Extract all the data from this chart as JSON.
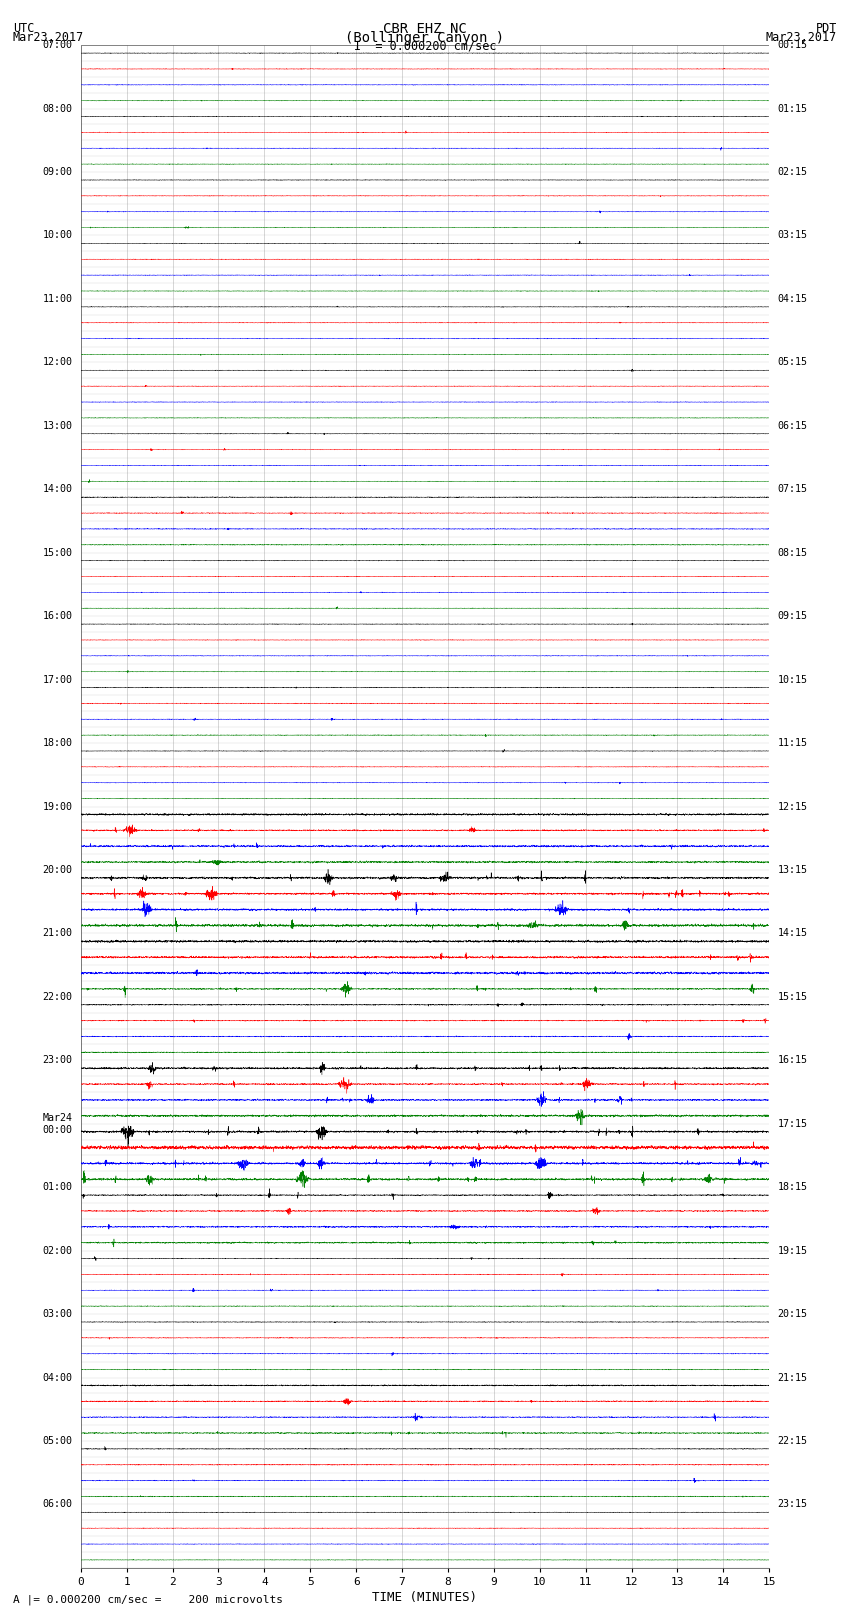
{
  "title_line1": "CBR EHZ NC",
  "title_line2": "(Bollinger Canyon )",
  "title_line3": "I  = 0.000200 cm/sec",
  "left_header_line1": "UTC",
  "left_header_line2": "Mar23,2017",
  "right_header_line1": "PDT",
  "right_header_line2": "Mar23,2017",
  "xlabel": "TIME (MINUTES)",
  "footer": "A |= 0.000200 cm/sec =    200 microvolts",
  "xlim": [
    0,
    15
  ],
  "xticks": [
    0,
    1,
    2,
    3,
    4,
    5,
    6,
    7,
    8,
    9,
    10,
    11,
    12,
    13,
    14,
    15
  ],
  "background_color": "#ffffff",
  "grid_color": "#888888",
  "trace_colors": [
    "black",
    "red",
    "blue",
    "green"
  ],
  "num_hour_rows": 24,
  "traces_per_hour": 4,
  "left_times_utc": [
    "07:00",
    "08:00",
    "09:00",
    "10:00",
    "11:00",
    "12:00",
    "13:00",
    "14:00",
    "15:00",
    "16:00",
    "17:00",
    "18:00",
    "19:00",
    "20:00",
    "21:00",
    "22:00",
    "23:00",
    "Mar24\n00:00",
    "01:00",
    "02:00",
    "03:00",
    "04:00",
    "05:00",
    "06:00"
  ],
  "right_times_pdt": [
    "00:15",
    "01:15",
    "02:15",
    "03:15",
    "04:15",
    "05:15",
    "06:15",
    "07:15",
    "08:15",
    "09:15",
    "10:15",
    "11:15",
    "12:15",
    "13:15",
    "14:15",
    "15:15",
    "16:15",
    "17:15",
    "18:15",
    "19:15",
    "20:15",
    "21:15",
    "22:15",
    "23:15"
  ],
  "activity_levels": [
    0.4,
    0.4,
    0.4,
    0.4,
    0.4,
    0.4,
    0.4,
    0.6,
    0.4,
    0.4,
    0.5,
    0.4,
    1.5,
    2.5,
    1.8,
    0.8,
    2.0,
    3.0,
    1.2,
    0.5,
    0.5,
    1.0,
    0.6,
    0.4
  ]
}
